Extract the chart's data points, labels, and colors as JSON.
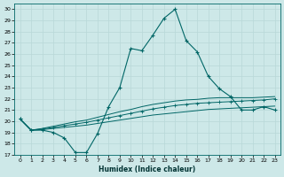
{
  "xlabel": "Humidex (Indice chaleur)",
  "ylabel": "",
  "background_color": "#cde8e8",
  "grid_color": "#b8d8d8",
  "line_color": "#006666",
  "xlim": [
    -0.5,
    23.5
  ],
  "ylim": [
    17,
    30.5
  ],
  "yticks": [
    17,
    18,
    19,
    20,
    21,
    22,
    23,
    24,
    25,
    26,
    27,
    28,
    29,
    30
  ],
  "xticks": [
    0,
    1,
    2,
    3,
    4,
    5,
    6,
    7,
    8,
    9,
    10,
    11,
    12,
    13,
    14,
    15,
    16,
    17,
    18,
    19,
    20,
    21,
    22,
    23
  ],
  "s1_x": [
    0,
    1,
    2,
    3,
    4,
    5,
    6,
    7,
    8,
    9,
    10,
    11,
    12,
    13,
    14,
    15,
    16,
    17,
    18,
    19,
    20,
    21,
    22,
    23
  ],
  "s1_y": [
    20.2,
    19.2,
    19.2,
    19.0,
    18.5,
    17.2,
    17.2,
    18.9,
    21.3,
    23.0,
    26.5,
    26.3,
    27.7,
    29.2,
    30.0,
    27.2,
    26.2,
    24.0,
    22.9,
    22.2,
    21.0,
    21.0,
    21.3,
    21.0
  ],
  "s2_x": [
    0,
    1,
    2,
    3,
    4,
    5,
    6,
    7,
    8,
    9,
    10,
    11,
    12,
    13,
    14,
    15,
    16,
    17,
    18,
    19,
    20,
    21,
    22,
    23
  ],
  "s2_y": [
    20.2,
    19.2,
    19.25,
    19.35,
    19.45,
    19.55,
    19.65,
    19.8,
    19.95,
    20.1,
    20.25,
    20.4,
    20.55,
    20.65,
    20.75,
    20.85,
    20.95,
    21.05,
    21.1,
    21.15,
    21.2,
    21.25,
    21.3,
    21.35
  ],
  "s3_x": [
    0,
    1,
    2,
    3,
    4,
    5,
    6,
    7,
    8,
    9,
    10,
    11,
    12,
    13,
    14,
    15,
    16,
    17,
    18,
    19,
    20,
    21,
    22,
    23
  ],
  "s3_y": [
    20.2,
    19.2,
    19.3,
    19.45,
    19.6,
    19.75,
    19.9,
    20.1,
    20.3,
    20.5,
    20.7,
    20.9,
    21.1,
    21.25,
    21.4,
    21.5,
    21.6,
    21.65,
    21.7,
    21.75,
    21.8,
    21.85,
    21.9,
    22.0
  ],
  "s4_x": [
    0,
    1,
    2,
    3,
    4,
    5,
    6,
    7,
    8,
    9,
    10,
    11,
    12,
    13,
    14,
    15,
    16,
    17,
    18,
    19,
    20,
    21,
    22,
    23
  ],
  "s4_y": [
    20.2,
    19.2,
    19.35,
    19.55,
    19.75,
    19.95,
    20.1,
    20.35,
    20.6,
    20.85,
    21.05,
    21.3,
    21.5,
    21.65,
    21.8,
    21.9,
    21.95,
    22.05,
    22.1,
    22.1,
    22.1,
    22.1,
    22.15,
    22.2
  ]
}
